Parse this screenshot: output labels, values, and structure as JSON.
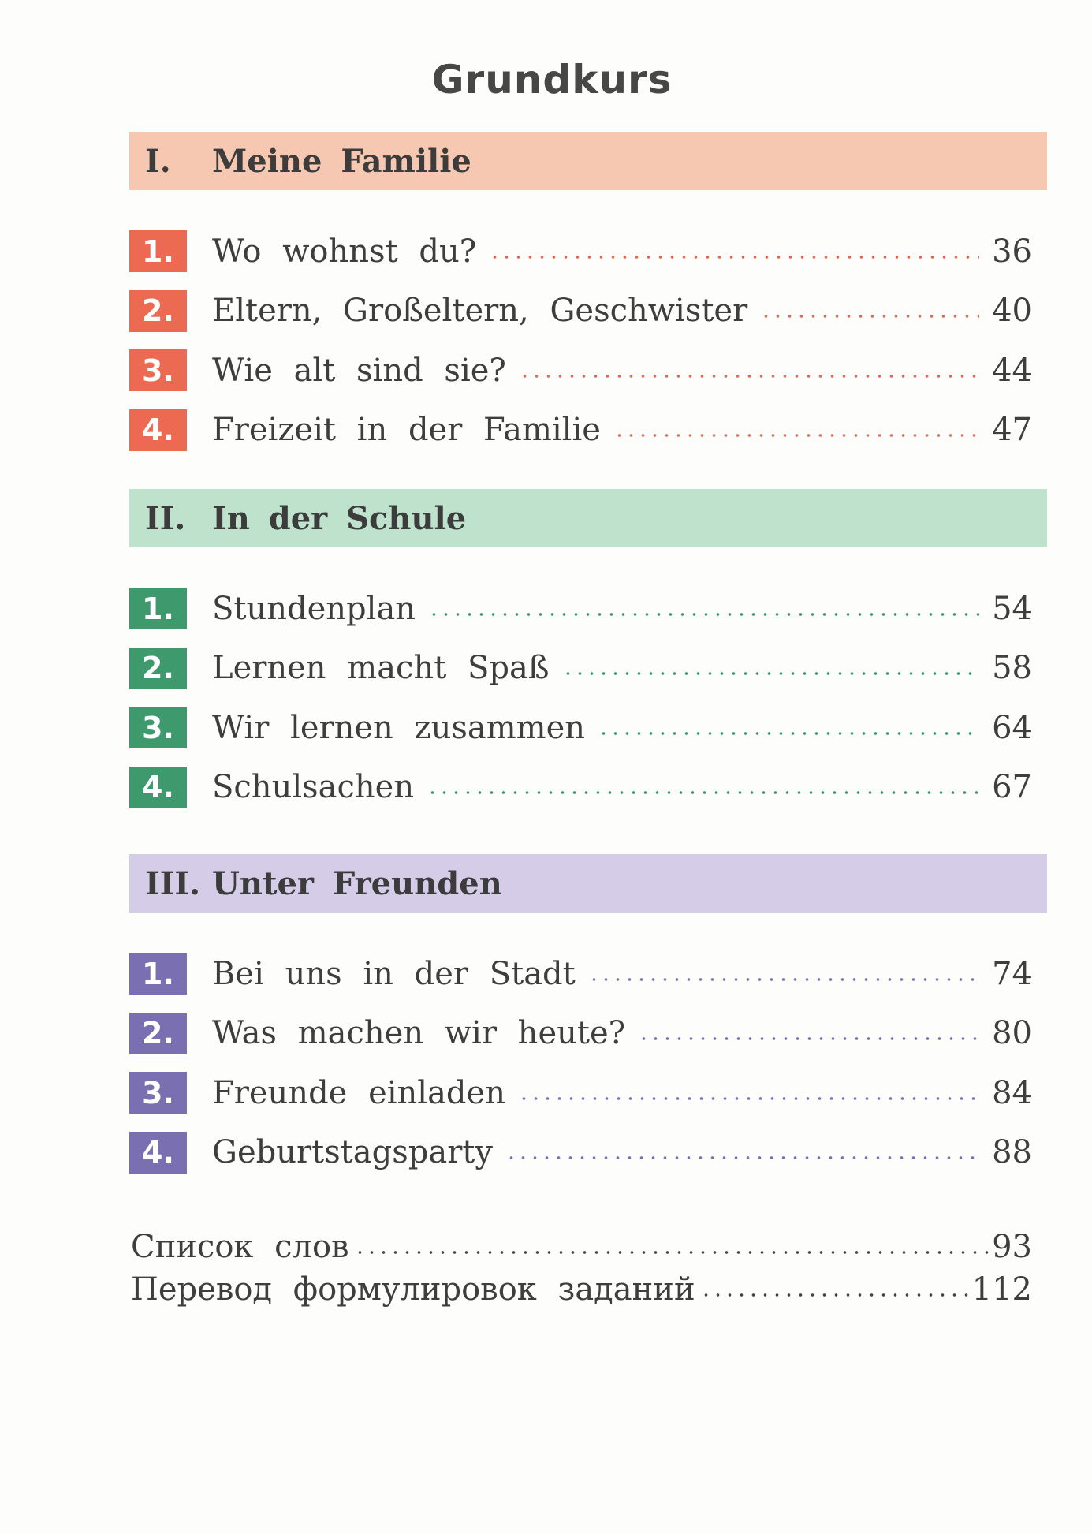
{
  "title": "Grundkurs",
  "sections": [
    {
      "numeral": "I.",
      "title": "Meine Familie",
      "items": [
        {
          "num": "1.",
          "label": "Wo wohnst du?",
          "page": "36"
        },
        {
          "num": "2.",
          "label": "Eltern, Großeltern, Geschwister",
          "page": "40"
        },
        {
          "num": "3.",
          "label": "Wie alt sind sie?",
          "page": "44"
        },
        {
          "num": "4.",
          "label": "Freizeit in der Familie",
          "page": "47"
        }
      ]
    },
    {
      "numeral": "II.",
      "title": "In der Schule",
      "items": [
        {
          "num": "1.",
          "label": "Stundenplan",
          "page": "54"
        },
        {
          "num": "2.",
          "label": "Lernen macht Spaß",
          "page": "58"
        },
        {
          "num": "3.",
          "label": "Wir lernen zusammen",
          "page": "64"
        },
        {
          "num": "4.",
          "label": "Schulsachen",
          "page": "67"
        }
      ]
    },
    {
      "numeral": "III.",
      "title": "Unter Freunden",
      "items": [
        {
          "num": "1.",
          "label": "Bei uns in der Stadt",
          "page": "74"
        },
        {
          "num": "2.",
          "label": "Was machen wir heute?",
          "page": "80"
        },
        {
          "num": "3.",
          "label": "Freunde einladen",
          "page": "84"
        },
        {
          "num": "4.",
          "label": "Geburtstagsparty",
          "page": "88"
        }
      ]
    }
  ],
  "extras": [
    {
      "label": "Список слов",
      "page": "93"
    },
    {
      "label": "Перевод формулировок заданий",
      "page": "112"
    }
  ],
  "colors": {
    "section1": "#ec6a51",
    "section2": "#3e9a6d",
    "section3": "#7a6fb0"
  }
}
